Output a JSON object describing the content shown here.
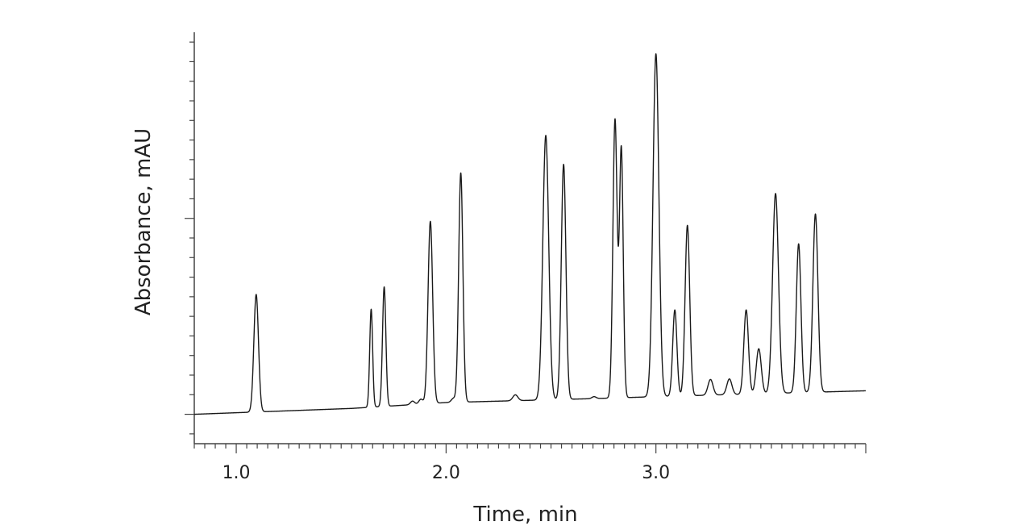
{
  "chart_data": {
    "type": "line",
    "title": "",
    "xlabel": "Time, min",
    "ylabel": "Absorbance, mAU",
    "xlim": [
      0.8,
      4.0
    ],
    "ylim": [
      -0.15,
      1.95
    ],
    "x_ticks": [
      1.0,
      2.0,
      3.0
    ],
    "x_tick_labels": [
      "1.0",
      "2.0",
      "3.0"
    ],
    "y_major_ticks": [
      0,
      1,
      2
    ],
    "y_tick_labels_shown": false,
    "grid": false,
    "legend": "none",
    "series": [
      {
        "color": "#1a1a1a",
        "baseline": [
          [
            0.8,
            0.0
          ],
          [
            1.55,
            0.03
          ],
          [
            2.0,
            0.06
          ],
          [
            2.7,
            0.08
          ],
          [
            3.0,
            0.09
          ],
          [
            4.0,
            0.12
          ]
        ],
        "peaks": [
          {
            "rt": 1.095,
            "height": 0.6,
            "width": 0.011
          },
          {
            "rt": 1.643,
            "height": 0.5,
            "width": 0.007
          },
          {
            "rt": 1.705,
            "height": 0.61,
            "width": 0.008
          },
          {
            "rt": 1.84,
            "height": 0.018,
            "width": 0.01
          },
          {
            "rt": 1.88,
            "height": 0.025,
            "width": 0.01
          },
          {
            "rt": 1.925,
            "height": 0.93,
            "width": 0.011
          },
          {
            "rt": 2.035,
            "height": 0.02,
            "width": 0.01
          },
          {
            "rt": 2.07,
            "height": 1.17,
            "width": 0.01
          },
          {
            "rt": 2.33,
            "height": 0.03,
            "width": 0.012
          },
          {
            "rt": 2.475,
            "height": 1.35,
            "width": 0.014
          },
          {
            "rt": 2.56,
            "height": 1.2,
            "width": 0.011
          },
          {
            "rt": 2.705,
            "height": 0.01,
            "width": 0.01
          },
          {
            "rt": 2.805,
            "height": 1.42,
            "width": 0.01
          },
          {
            "rt": 2.835,
            "height": 1.27,
            "width": 0.009
          },
          {
            "rt": 3.0,
            "height": 1.75,
            "width": 0.014
          },
          {
            "rt": 3.09,
            "height": 0.44,
            "width": 0.01
          },
          {
            "rt": 3.15,
            "height": 0.87,
            "width": 0.011
          },
          {
            "rt": 3.26,
            "height": 0.08,
            "width": 0.012
          },
          {
            "rt": 3.35,
            "height": 0.08,
            "width": 0.012
          },
          {
            "rt": 3.43,
            "height": 0.43,
            "width": 0.011
          },
          {
            "rt": 3.49,
            "height": 0.23,
            "width": 0.012
          },
          {
            "rt": 3.57,
            "height": 1.02,
            "width": 0.014
          },
          {
            "rt": 3.68,
            "height": 0.76,
            "width": 0.011
          },
          {
            "rt": 3.76,
            "height": 0.91,
            "width": 0.012
          }
        ]
      }
    ]
  }
}
